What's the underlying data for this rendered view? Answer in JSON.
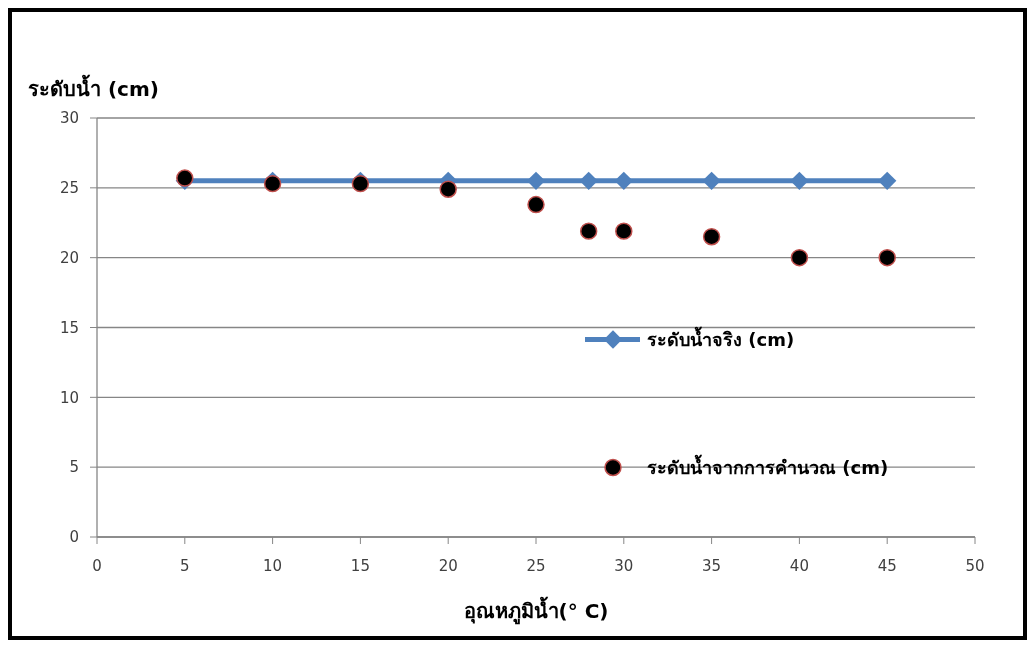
{
  "chart_data": {
    "type": "line",
    "ylabel": "ระดับน้ำ (cm)",
    "xlabel": "อุณหภูมิน้ำ(° C)",
    "x": [
      5,
      10,
      15,
      20,
      25,
      28,
      30,
      35,
      40,
      45
    ],
    "series": [
      {
        "name": "ระดับน้ำจริง (cm)",
        "color": "#4f81bd",
        "marker": "diamond",
        "values": [
          25.5,
          25.5,
          25.5,
          25.5,
          25.5,
          25.5,
          25.5,
          25.5,
          25.5,
          25.5
        ]
      },
      {
        "name": "ระดับน้ำจากการคำนวณ (cm)",
        "type": "scatter",
        "color": "#000000",
        "marker": "circle",
        "values": [
          25.7,
          25.3,
          25.3,
          24.9,
          23.8,
          21.9,
          21.9,
          21.5,
          20,
          20
        ]
      }
    ],
    "xlim": [
      0,
      50
    ],
    "xticks": [
      0,
      5,
      10,
      15,
      20,
      25,
      30,
      35,
      40,
      45,
      50
    ],
    "ylim": [
      0,
      30
    ],
    "yticks": [
      0,
      5,
      10,
      15,
      20,
      25,
      30
    ],
    "grid": "y",
    "legend": "right",
    "line_style": "solid"
  }
}
